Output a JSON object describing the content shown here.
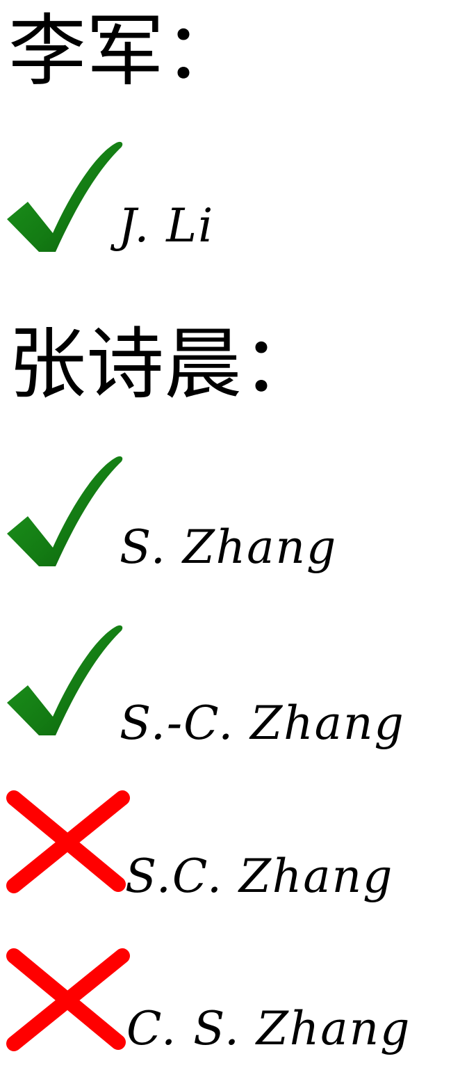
{
  "colors": {
    "check": "#137a13",
    "cross": "#ff0000",
    "text": "#000000"
  },
  "sections": [
    {
      "heading": "李军：",
      "entries": [
        {
          "mark": "check-icon",
          "name": "J. Li"
        }
      ]
    },
    {
      "heading": "张诗晨：",
      "entries": [
        {
          "mark": "check-icon",
          "name": "S. Zhang"
        },
        {
          "mark": "check-icon",
          "name": "S.-C. Zhang"
        },
        {
          "mark": "cross-icon",
          "name": "S.C. Zhang"
        },
        {
          "mark": "cross-icon",
          "name": "C. S. Zhang"
        }
      ]
    }
  ]
}
